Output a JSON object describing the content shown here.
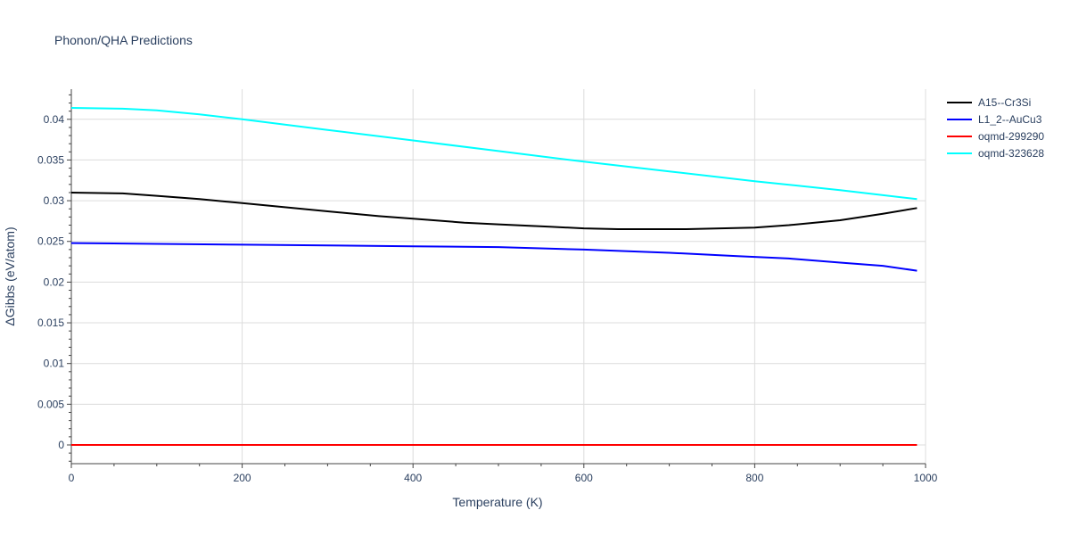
{
  "chart_data": {
    "type": "line",
    "title": "Phonon/QHA Predictions",
    "xlabel": "Temperature (K)",
    "ylabel": "ΔGibbs (eV/atom)",
    "xlim": [
      0,
      1000
    ],
    "ylim": [
      -0.0023,
      0.0437
    ],
    "grid": true,
    "legend_position": "top-right",
    "x_ticks": [
      0,
      200,
      400,
      600,
      800,
      1000
    ],
    "x_tick_labels": [
      "0",
      "200",
      "400",
      "600",
      "800",
      "1000"
    ],
    "y_ticks": [
      0,
      0.005,
      0.01,
      0.015,
      0.02,
      0.025,
      0.03,
      0.035,
      0.04
    ],
    "y_tick_labels": [
      "0",
      "0.005",
      "0.01",
      "0.015",
      "0.02",
      "0.025",
      "0.03",
      "0.035",
      "0.04"
    ],
    "series": [
      {
        "name": "A15--Cr3Si",
        "color": "#000000",
        "x": [
          0,
          60,
          100,
          150,
          200,
          250,
          300,
          360,
          400,
          460,
          500,
          560,
          600,
          640,
          720,
          800,
          840,
          900,
          950,
          990
        ],
        "y": [
          0.031,
          0.0309,
          0.0306,
          0.0302,
          0.0297,
          0.0292,
          0.0287,
          0.0281,
          0.0278,
          0.0273,
          0.0271,
          0.0268,
          0.0266,
          0.0265,
          0.0265,
          0.0267,
          0.027,
          0.0276,
          0.0284,
          0.0291
        ]
      },
      {
        "name": "L1_2--AuCu3",
        "color": "#0000ff",
        "x": [
          0,
          100,
          200,
          300,
          400,
          500,
          600,
          700,
          780,
          840,
          900,
          950,
          990
        ],
        "y": [
          0.0248,
          0.0247,
          0.0246,
          0.0245,
          0.0244,
          0.0243,
          0.024,
          0.0236,
          0.0232,
          0.0229,
          0.0224,
          0.022,
          0.0214
        ]
      },
      {
        "name": "oqmd-299290",
        "color": "#ff0000",
        "x": [
          0,
          990
        ],
        "y": [
          0,
          0
        ]
      },
      {
        "name": "oqmd-323628",
        "color": "#00ffff",
        "x": [
          0,
          60,
          100,
          150,
          200,
          300,
          400,
          500,
          600,
          700,
          800,
          900,
          990
        ],
        "y": [
          0.0414,
          0.0413,
          0.0411,
          0.0406,
          0.04,
          0.0387,
          0.0374,
          0.0361,
          0.0348,
          0.0336,
          0.0324,
          0.0313,
          0.0302
        ]
      }
    ]
  }
}
